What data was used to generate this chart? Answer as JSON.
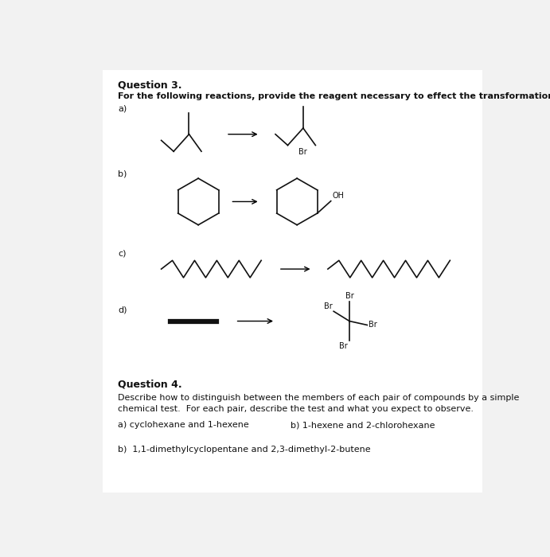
{
  "background_color": "#f2f2f2",
  "page_color": "#ffffff",
  "title": "Question 3.",
  "subtitle": "For the following reactions, provide the reagent necessary to effect the transformation.",
  "q4_title": "Question 4.",
  "q4_desc1": "Describe how to distinguish between the members of each pair of compounds by a simple",
  "q4_desc2": "chemical test.  For each pair, describe the test and what you expect to observe.",
  "q4_a": "a) cyclohexane and 1-hexene",
  "q4_b_right": "b) 1-hexene and 2-chlorohexane",
  "q4_b2": "b)  1,1-dimethylcyclopentane and 2,3-dimethyl-2-butene",
  "text_color": "#111111",
  "line_color": "#111111",
  "font_size_title": 9,
  "font_size_bold_sub": 8,
  "font_size_body": 8,
  "font_size_label": 8,
  "font_size_struct": 7
}
